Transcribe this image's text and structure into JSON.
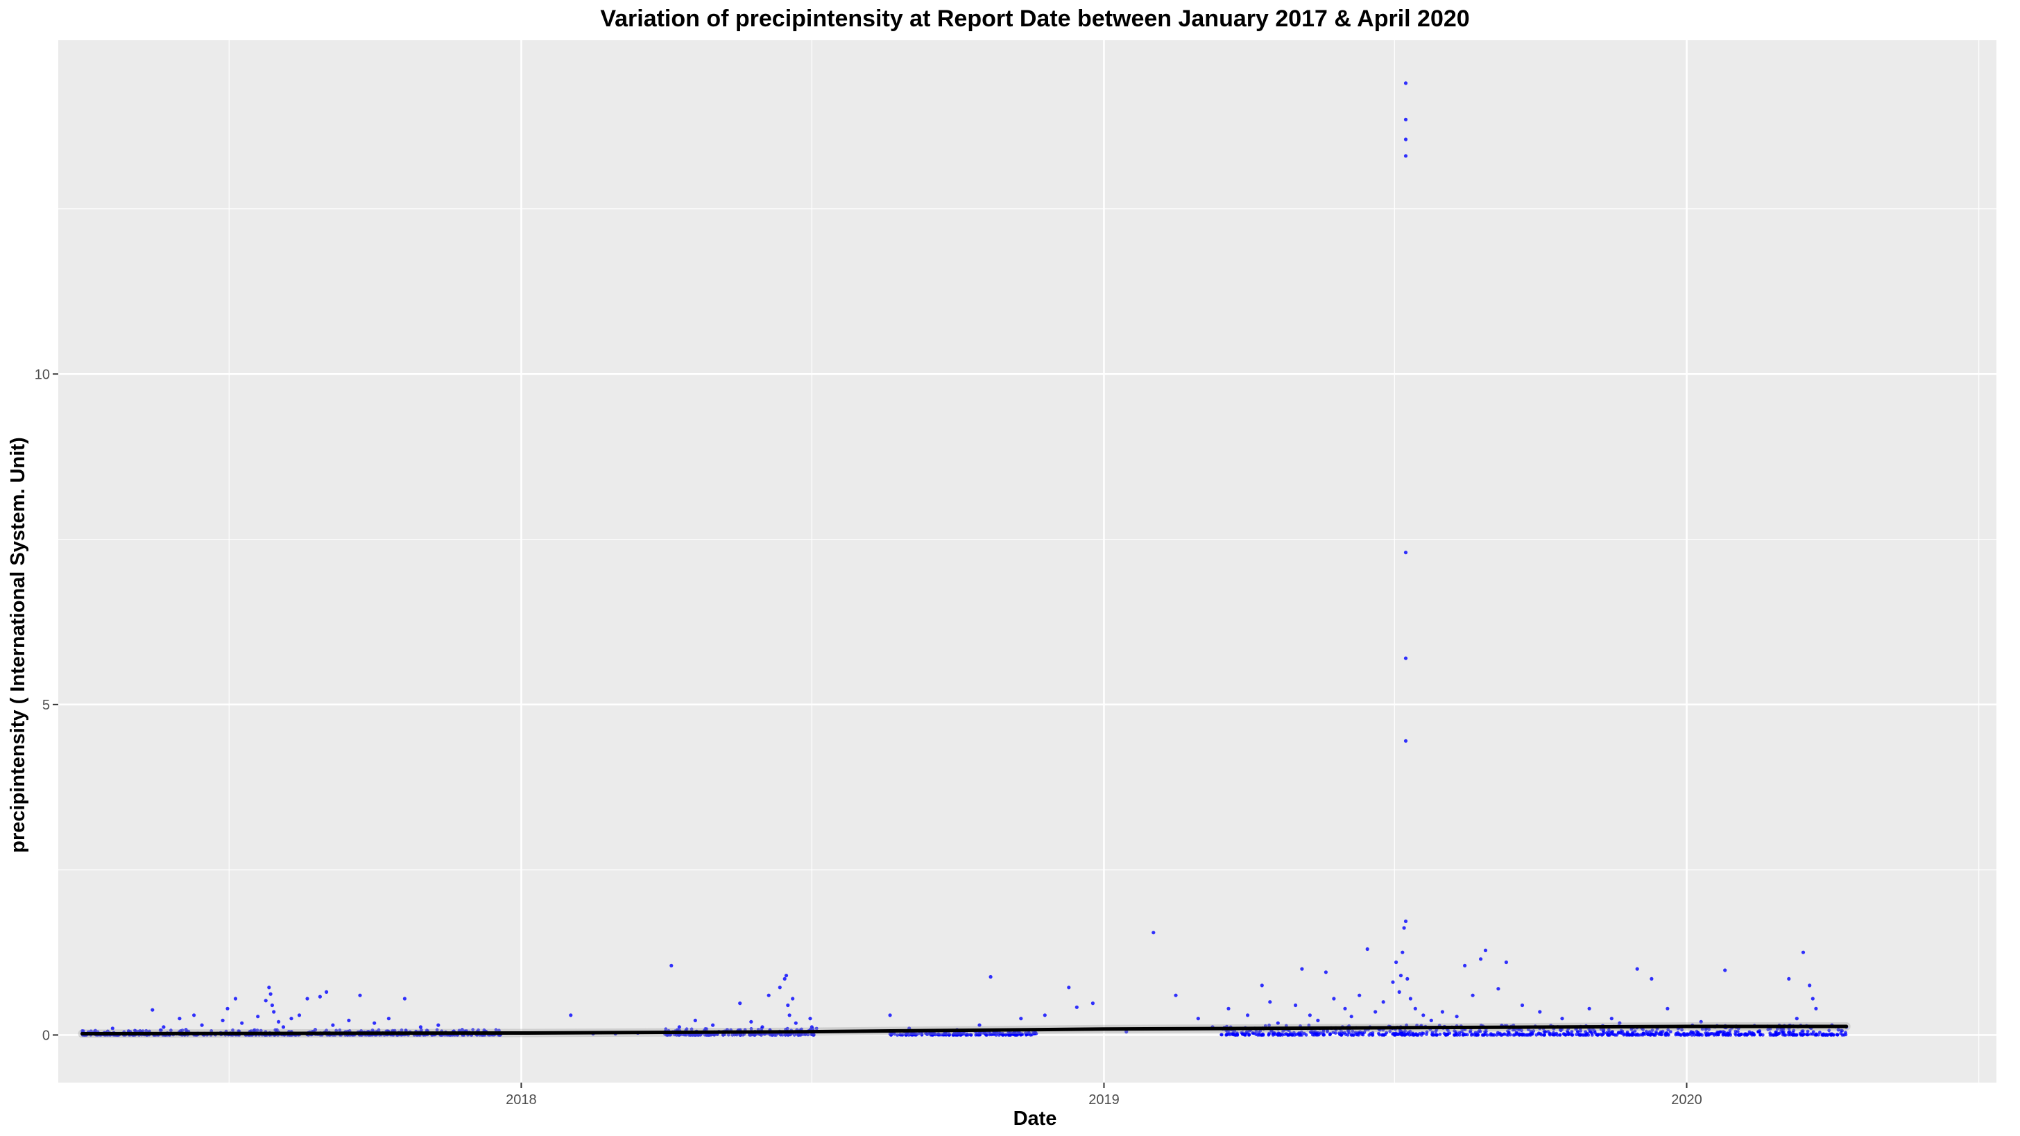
{
  "chart_data": {
    "type": "scatter",
    "title": "Variation of  precipintensity  at Report Date between January 2017 & April 2020",
    "xlabel": "Date",
    "ylabel": "precipintensity ( International System. Unit)",
    "x_axis_type": "date",
    "xlim": [
      "2017-03-17",
      "2020-07-13"
    ],
    "ylim": [
      -0.72,
      15.05
    ],
    "x_ticks": [
      {
        "date": "2018-01-01",
        "label": "2018"
      },
      {
        "date": "2019-01-01",
        "label": "2019"
      },
      {
        "date": "2020-01-01",
        "label": "2020"
      }
    ],
    "y_ticks": [
      {
        "value": 0,
        "label": "0"
      },
      {
        "value": 5,
        "label": "5"
      },
      {
        "value": 10,
        "label": "10"
      }
    ],
    "grid": true,
    "panel_background": "#ebebeb",
    "point_color": "#0000ff",
    "trend_line": {
      "color": "#000000",
      "points": [
        {
          "x": "2017-04-01",
          "y": 0.02
        },
        {
          "x": "2018-01-01",
          "y": 0.03
        },
        {
          "x": "2018-07-01",
          "y": 0.05
        },
        {
          "x": "2019-01-01",
          "y": 0.09
        },
        {
          "x": "2019-07-01",
          "y": 0.11
        },
        {
          "x": "2020-01-01",
          "y": 0.13
        },
        {
          "x": "2020-04-10",
          "y": 0.13
        }
      ]
    },
    "series": [
      {
        "points": [
          {
            "x": "2017-04-10",
            "y": 0.02
          },
          {
            "x": "2017-04-20",
            "y": 0.1
          },
          {
            "x": "2017-05-01",
            "y": 0.05
          },
          {
            "x": "2017-05-15",
            "y": 0.38
          },
          {
            "x": "2017-05-22",
            "y": 0.12
          },
          {
            "x": "2017-06-01",
            "y": 0.25
          },
          {
            "x": "2017-06-05",
            "y": 0.08
          },
          {
            "x": "2017-06-10",
            "y": 0.3
          },
          {
            "x": "2017-06-15",
            "y": 0.15
          },
          {
            "x": "2017-06-28",
            "y": 0.22
          },
          {
            "x": "2017-07-01",
            "y": 0.4
          },
          {
            "x": "2017-07-06",
            "y": 0.55
          },
          {
            "x": "2017-07-10",
            "y": 0.18
          },
          {
            "x": "2017-07-15",
            "y": 0.05
          },
          {
            "x": "2017-07-20",
            "y": 0.28
          },
          {
            "x": "2017-07-25",
            "y": 0.52
          },
          {
            "x": "2017-07-27",
            "y": 0.72
          },
          {
            "x": "2017-07-28",
            "y": 0.62
          },
          {
            "x": "2017-07-29",
            "y": 0.45
          },
          {
            "x": "2017-07-30",
            "y": 0.35
          },
          {
            "x": "2017-08-02",
            "y": 0.2
          },
          {
            "x": "2017-08-05",
            "y": 0.12
          },
          {
            "x": "2017-08-10",
            "y": 0.25
          },
          {
            "x": "2017-08-15",
            "y": 0.3
          },
          {
            "x": "2017-08-20",
            "y": 0.55
          },
          {
            "x": "2017-08-25",
            "y": 0.08
          },
          {
            "x": "2017-08-28",
            "y": 0.58
          },
          {
            "x": "2017-09-01",
            "y": 0.65
          },
          {
            "x": "2017-09-05",
            "y": 0.15
          },
          {
            "x": "2017-09-15",
            "y": 0.22
          },
          {
            "x": "2017-09-22",
            "y": 0.6
          },
          {
            "x": "2017-10-01",
            "y": 0.18
          },
          {
            "x": "2017-10-10",
            "y": 0.25
          },
          {
            "x": "2017-10-20",
            "y": 0.55
          },
          {
            "x": "2017-10-30",
            "y": 0.12
          },
          {
            "x": "2017-11-10",
            "y": 0.15
          },
          {
            "x": "2017-11-25",
            "y": 0.08
          },
          {
            "x": "2017-12-10",
            "y": 0.05
          },
          {
            "x": "2018-02-01",
            "y": 0.3
          },
          {
            "x": "2018-02-15",
            "y": 0.02
          },
          {
            "x": "2018-03-01",
            "y": 0.02
          },
          {
            "x": "2018-03-15",
            "y": 0.03
          },
          {
            "x": "2018-04-01",
            "y": 0.05
          },
          {
            "x": "2018-04-05",
            "y": 1.05
          },
          {
            "x": "2018-04-10",
            "y": 0.12
          },
          {
            "x": "2018-04-20",
            "y": 0.22
          },
          {
            "x": "2018-05-01",
            "y": 0.15
          },
          {
            "x": "2018-05-10",
            "y": 0.08
          },
          {
            "x": "2018-05-18",
            "y": 0.48
          },
          {
            "x": "2018-05-25",
            "y": 0.2
          },
          {
            "x": "2018-06-01",
            "y": 0.12
          },
          {
            "x": "2018-06-05",
            "y": 0.6
          },
          {
            "x": "2018-06-12",
            "y": 0.72
          },
          {
            "x": "2018-06-15",
            "y": 0.85
          },
          {
            "x": "2018-06-16",
            "y": 0.9
          },
          {
            "x": "2018-06-17",
            "y": 0.45
          },
          {
            "x": "2018-06-18",
            "y": 0.3
          },
          {
            "x": "2018-06-20",
            "y": 0.55
          },
          {
            "x": "2018-06-22",
            "y": 0.18
          },
          {
            "x": "2018-07-01",
            "y": 0.25
          },
          {
            "x": "2018-07-02",
            "y": 0.12
          },
          {
            "x": "2018-08-20",
            "y": 0.3
          },
          {
            "x": "2018-09-01",
            "y": 0.1
          },
          {
            "x": "2018-09-15",
            "y": 0.05
          },
          {
            "x": "2018-10-01",
            "y": 0.08
          },
          {
            "x": "2018-10-15",
            "y": 0.15
          },
          {
            "x": "2018-10-22",
            "y": 0.88
          },
          {
            "x": "2018-11-10",
            "y": 0.25
          },
          {
            "x": "2018-11-25",
            "y": 0.3
          },
          {
            "x": "2018-12-10",
            "y": 0.72
          },
          {
            "x": "2018-12-15",
            "y": 0.42
          },
          {
            "x": "2018-12-25",
            "y": 0.48
          },
          {
            "x": "2019-01-15",
            "y": 0.05
          },
          {
            "x": "2019-02-01",
            "y": 1.55
          },
          {
            "x": "2019-02-15",
            "y": 0.6
          },
          {
            "x": "2019-03-01",
            "y": 0.25
          },
          {
            "x": "2019-03-10",
            "y": 0.12
          },
          {
            "x": "2019-03-20",
            "y": 0.4
          },
          {
            "x": "2019-04-01",
            "y": 0.3
          },
          {
            "x": "2019-04-10",
            "y": 0.75
          },
          {
            "x": "2019-04-15",
            "y": 0.5
          },
          {
            "x": "2019-04-20",
            "y": 0.18
          },
          {
            "x": "2019-05-01",
            "y": 0.45
          },
          {
            "x": "2019-05-05",
            "y": 1.0
          },
          {
            "x": "2019-05-10",
            "y": 0.3
          },
          {
            "x": "2019-05-15",
            "y": 0.22
          },
          {
            "x": "2019-05-20",
            "y": 0.95
          },
          {
            "x": "2019-05-25",
            "y": 0.55
          },
          {
            "x": "2019-06-01",
            "y": 0.4
          },
          {
            "x": "2019-06-05",
            "y": 0.28
          },
          {
            "x": "2019-06-10",
            "y": 0.6
          },
          {
            "x": "2019-06-15",
            "y": 1.3
          },
          {
            "x": "2019-06-20",
            "y": 0.35
          },
          {
            "x": "2019-06-25",
            "y": 0.5
          },
          {
            "x": "2019-07-01",
            "y": 0.8
          },
          {
            "x": "2019-07-03",
            "y": 1.1
          },
          {
            "x": "2019-07-05",
            "y": 0.65
          },
          {
            "x": "2019-07-06",
            "y": 0.9
          },
          {
            "x": "2019-07-07",
            "y": 1.25
          },
          {
            "x": "2019-07-08",
            "y": 1.62
          },
          {
            "x": "2019-07-09",
            "y": 1.72
          },
          {
            "x": "2019-07-09",
            "y": 14.4
          },
          {
            "x": "2019-07-09",
            "y": 13.85
          },
          {
            "x": "2019-07-09",
            "y": 13.55
          },
          {
            "x": "2019-07-09",
            "y": 13.3
          },
          {
            "x": "2019-07-09",
            "y": 7.3
          },
          {
            "x": "2019-07-09",
            "y": 5.7
          },
          {
            "x": "2019-07-09",
            "y": 4.45
          },
          {
            "x": "2019-07-10",
            "y": 0.85
          },
          {
            "x": "2019-07-12",
            "y": 0.55
          },
          {
            "x": "2019-07-15",
            "y": 0.4
          },
          {
            "x": "2019-07-20",
            "y": 0.3
          },
          {
            "x": "2019-07-25",
            "y": 0.22
          },
          {
            "x": "2019-08-01",
            "y": 0.35
          },
          {
            "x": "2019-08-10",
            "y": 0.28
          },
          {
            "x": "2019-08-15",
            "y": 1.05
          },
          {
            "x": "2019-08-20",
            "y": 0.6
          },
          {
            "x": "2019-08-25",
            "y": 1.15
          },
          {
            "x": "2019-08-28",
            "y": 1.28
          },
          {
            "x": "2019-09-05",
            "y": 0.7
          },
          {
            "x": "2019-09-10",
            "y": 1.1
          },
          {
            "x": "2019-09-20",
            "y": 0.45
          },
          {
            "x": "2019-10-01",
            "y": 0.35
          },
          {
            "x": "2019-10-15",
            "y": 0.25
          },
          {
            "x": "2019-11-01",
            "y": 0.4
          },
          {
            "x": "2019-11-15",
            "y": 0.25
          },
          {
            "x": "2019-11-20",
            "y": 0.18
          },
          {
            "x": "2019-12-01",
            "y": 1.0
          },
          {
            "x": "2019-12-10",
            "y": 0.85
          },
          {
            "x": "2019-12-20",
            "y": 0.4
          },
          {
            "x": "2020-01-10",
            "y": 0.2
          },
          {
            "x": "2020-01-25",
            "y": 0.98
          },
          {
            "x": "2020-02-01",
            "y": 0.12
          },
          {
            "x": "2020-02-15",
            "y": 0.05
          },
          {
            "x": "2020-03-01",
            "y": 0.1
          },
          {
            "x": "2020-03-05",
            "y": 0.85
          },
          {
            "x": "2020-03-10",
            "y": 0.25
          },
          {
            "x": "2020-03-14",
            "y": 1.25
          },
          {
            "x": "2020-03-18",
            "y": 0.75
          },
          {
            "x": "2020-03-20",
            "y": 0.55
          },
          {
            "x": "2020-03-22",
            "y": 0.4
          },
          {
            "x": "2020-04-01",
            "y": 0.15
          },
          {
            "x": "2020-04-05",
            "y": 0.08
          },
          {
            "x": "2020-04-10",
            "y": 0.12
          }
        ]
      }
    ],
    "dense_ranges": [
      {
        "start": "2017-04-01",
        "end": "2017-12-20",
        "max_y": 0.08
      },
      {
        "start": "2018-04-01",
        "end": "2018-07-05",
        "max_y": 0.1
      },
      {
        "start": "2018-08-20",
        "end": "2018-11-20",
        "max_y": 0.06
      },
      {
        "start": "2019-03-15",
        "end": "2020-04-10",
        "max_y": 0.15
      }
    ]
  }
}
